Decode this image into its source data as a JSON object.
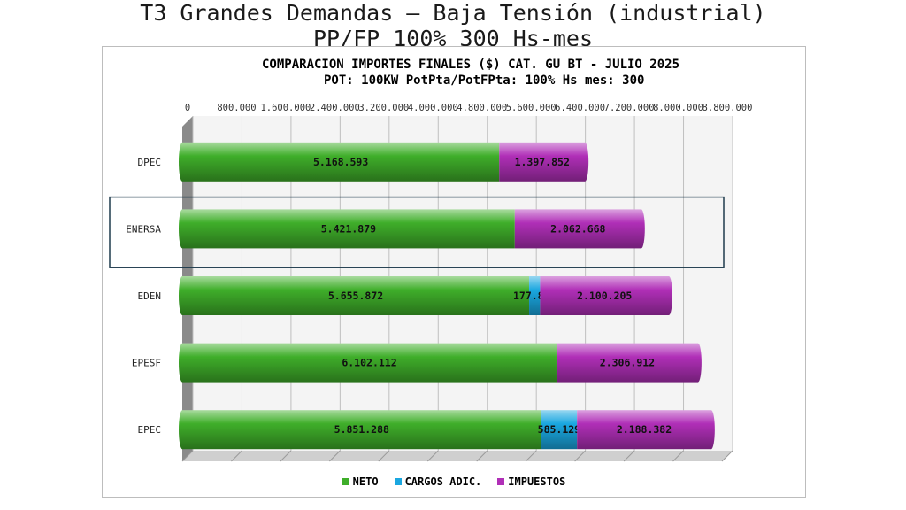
{
  "slide": {
    "title_line1": "T3 Grandes Demandas – Baja Tensión (industrial)",
    "title_line2": "PP/FP 100%  300 Hs-mes"
  },
  "colors": {
    "neto": "#3fae2a",
    "cargos": "#1aa7e0",
    "impuestos": "#b02fb7",
    "highlight_box": "#1f3b4d"
  },
  "chart_data": {
    "type": "bar",
    "orientation": "horizontal",
    "stacked": true,
    "title": "COMPARACION IMPORTES FINALES ($) CAT. GU BT - JULIO 2025",
    "subtitle": "POT: 100KW PotPta/PotFPta: 100% Hs mes: 300",
    "categories": [
      "DPEC",
      "ENERSA",
      "EDEN",
      "EPESF",
      "EPEC"
    ],
    "highlighted_category": "ENERSA",
    "xlim": [
      0,
      8800000
    ],
    "x_ticks": [
      "0",
      "800.000",
      "1.600.000",
      "2.400.000",
      "3.200.000",
      "4.000.000",
      "4.800.000",
      "5.600.000",
      "6.400.000",
      "7.200.000",
      "8.000.000",
      "8.800.000"
    ],
    "grid": true,
    "legend_position": "bottom",
    "series": [
      {
        "name": "NETO",
        "values": [
          5168593,
          5421879,
          5655872,
          6102112,
          5851288
        ],
        "labels": [
          "5.168.593",
          "5.421.879",
          "5.655.872",
          "6.102.112",
          "5.851.288"
        ]
      },
      {
        "name": "CARGOS ADIC.",
        "values": [
          0,
          0,
          177870,
          0,
          585129
        ],
        "labels": [
          "-",
          "-",
          "177.870",
          "-",
          "585.129"
        ]
      },
      {
        "name": "IMPUESTOS",
        "values": [
          1397852,
          2062668,
          2100205,
          2306912,
          2188382
        ],
        "labels": [
          "1.397.852",
          "2.062.668",
          "2.100.205",
          "2.306.912",
          "2.188.382"
        ]
      }
    ]
  }
}
